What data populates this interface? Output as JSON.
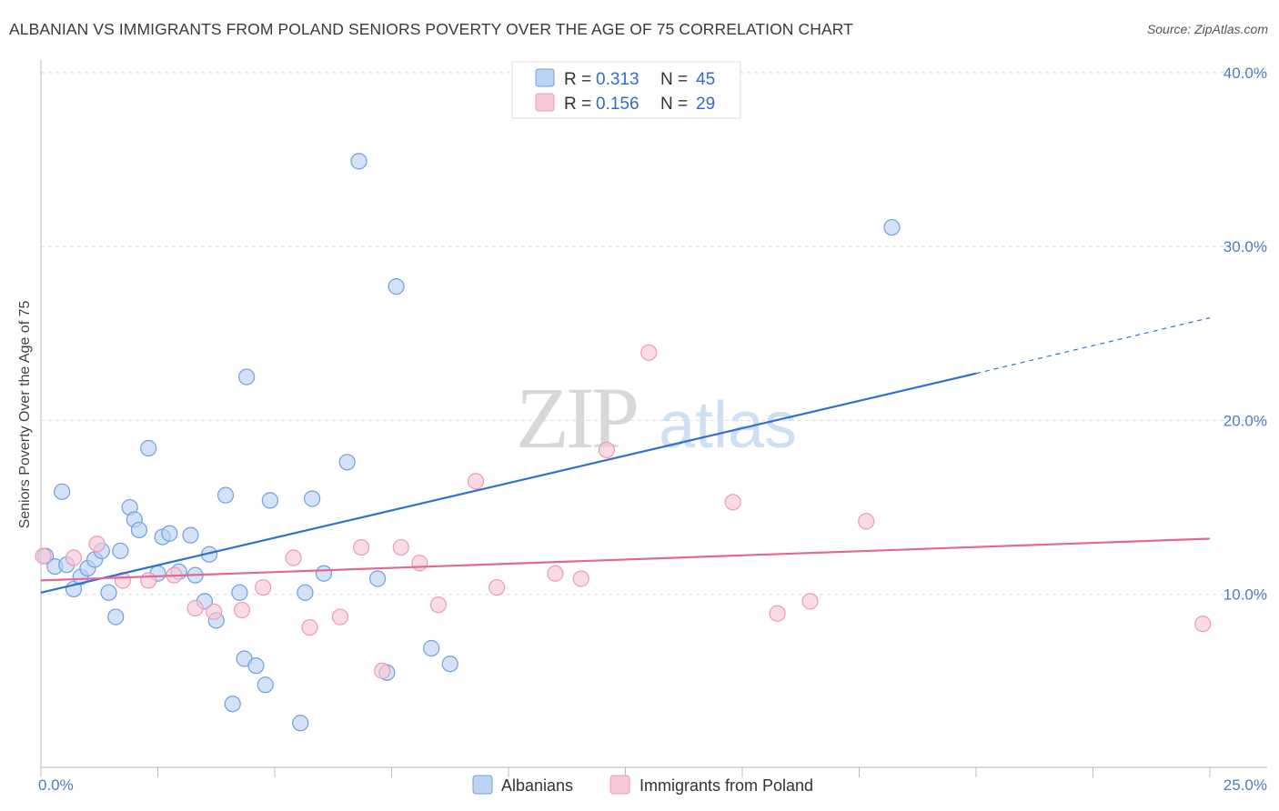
{
  "chart_data": {
    "type": "scatter",
    "title": "ALBANIAN VS IMMIGRANTS FROM POLAND SENIORS POVERTY OVER THE AGE OF 75 CORRELATION CHART",
    "source": "Source: ZipAtlas.com",
    "ylabel": "Seniors Poverty Over the Age of 75",
    "xlabel": "",
    "xlim": [
      0,
      25
    ],
    "ylim": [
      0,
      41
    ],
    "x_tick_labels": [
      "0.0%",
      "25.0%"
    ],
    "y_ticks": [
      10,
      20,
      30,
      40
    ],
    "y_tick_labels": [
      "10.0%",
      "20.0%",
      "30.0%",
      "40.0%"
    ],
    "watermark": {
      "zip": "ZIP",
      "atlas": "atlas"
    },
    "legend": [
      {
        "r_label": "R =",
        "r_value": "0.313",
        "n_label": "N =",
        "n_value": "45"
      },
      {
        "r_label": "R =",
        "r_value": "0.156",
        "n_label": "N =",
        "n_value": "29"
      }
    ],
    "series": [
      {
        "name": "Albanians",
        "color": "#6fa0e0",
        "fill": "#bcd3f3",
        "line_color": "#2f72d4",
        "trend": {
          "x0": 0,
          "y0": 10.1,
          "x1": 20,
          "y1": 22.7,
          "dashed_to_x": 25,
          "dashed_to_y": 25.9
        },
        "points": [
          [
            0.1,
            12.2
          ],
          [
            0.3,
            11.6
          ],
          [
            0.45,
            15.9
          ],
          [
            0.55,
            11.7
          ],
          [
            0.7,
            10.3
          ],
          [
            0.85,
            11.0
          ],
          [
            1.0,
            11.5
          ],
          [
            1.15,
            12.0
          ],
          [
            1.3,
            12.5
          ],
          [
            1.45,
            10.1
          ],
          [
            1.6,
            8.7
          ],
          [
            1.7,
            12.5
          ],
          [
            1.9,
            15.0
          ],
          [
            2.0,
            14.3
          ],
          [
            2.1,
            13.7
          ],
          [
            2.3,
            18.4
          ],
          [
            2.5,
            11.2
          ],
          [
            2.6,
            13.3
          ],
          [
            2.75,
            13.5
          ],
          [
            2.95,
            11.3
          ],
          [
            3.2,
            13.4
          ],
          [
            3.3,
            11.1
          ],
          [
            3.5,
            9.6
          ],
          [
            3.6,
            12.3
          ],
          [
            3.75,
            8.5
          ],
          [
            3.95,
            15.7
          ],
          [
            4.1,
            3.7
          ],
          [
            4.25,
            10.1
          ],
          [
            4.35,
            6.3
          ],
          [
            4.4,
            22.5
          ],
          [
            4.6,
            5.9
          ],
          [
            4.8,
            4.8
          ],
          [
            4.9,
            15.4
          ],
          [
            5.55,
            2.6
          ],
          [
            5.65,
            10.1
          ],
          [
            5.8,
            15.5
          ],
          [
            6.05,
            11.2
          ],
          [
            6.55,
            17.6
          ],
          [
            6.8,
            34.9
          ],
          [
            7.2,
            10.9
          ],
          [
            7.4,
            5.5
          ],
          [
            7.6,
            27.7
          ],
          [
            8.35,
            6.9
          ],
          [
            8.75,
            6.0
          ],
          [
            18.2,
            31.1
          ]
        ]
      },
      {
        "name": "Immigrants from Poland",
        "color": "#ee9bb5",
        "fill": "#f7c8d7",
        "line_color": "#e06a93",
        "trend": {
          "x0": 0,
          "y0": 10.8,
          "x1": 25,
          "y1": 13.2
        },
        "points": [
          [
            0.05,
            12.2
          ],
          [
            0.7,
            12.1
          ],
          [
            1.2,
            12.9
          ],
          [
            1.75,
            10.8
          ],
          [
            2.3,
            10.8
          ],
          [
            2.85,
            11.1
          ],
          [
            3.3,
            9.2
          ],
          [
            3.7,
            9.0
          ],
          [
            4.3,
            9.1
          ],
          [
            4.75,
            10.4
          ],
          [
            5.4,
            12.1
          ],
          [
            5.75,
            8.1
          ],
          [
            6.4,
            8.7
          ],
          [
            6.85,
            12.7
          ],
          [
            7.3,
            5.6
          ],
          [
            7.7,
            12.7
          ],
          [
            8.1,
            11.8
          ],
          [
            8.5,
            9.4
          ],
          [
            9.3,
            16.5
          ],
          [
            9.75,
            10.4
          ],
          [
            11.0,
            11.2
          ],
          [
            11.55,
            10.9
          ],
          [
            12.1,
            18.3
          ],
          [
            13.0,
            23.9
          ],
          [
            14.8,
            15.3
          ],
          [
            15.75,
            8.9
          ],
          [
            16.45,
            9.6
          ],
          [
            17.65,
            14.2
          ],
          [
            24.85,
            8.3
          ]
        ]
      }
    ]
  }
}
